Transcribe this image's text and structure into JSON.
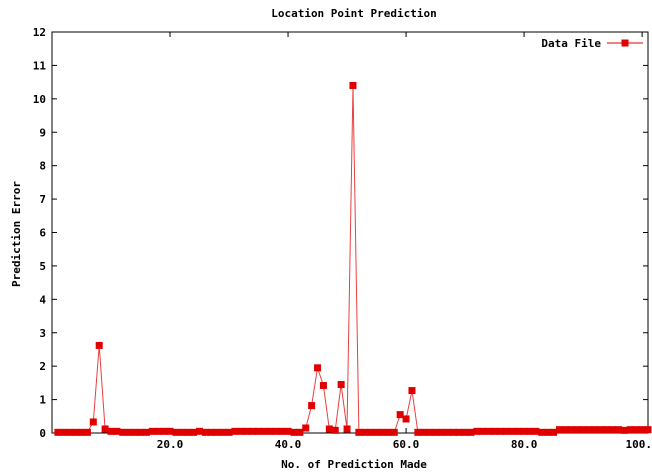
{
  "chart_data": {
    "type": "line",
    "title": "Location Point Prediction",
    "xlabel": "No. of Prediction Made",
    "ylabel": "Prediction Error",
    "xlim": [
      0,
      101
    ],
    "ylim": [
      0,
      12
    ],
    "xticks": [
      20,
      40,
      60,
      80,
      100
    ],
    "xtick_labels": [
      "20.0",
      "40.0",
      "60.0",
      "80.0",
      "100.0"
    ],
    "yticks": [
      0,
      1,
      2,
      3,
      4,
      5,
      6,
      7,
      8,
      9,
      10,
      11,
      12
    ],
    "ytick_labels": [
      "0",
      "1",
      "2",
      "3",
      "4",
      "5",
      "6",
      "7",
      "8",
      "9",
      "10",
      "11",
      "12"
    ],
    "grid": false,
    "legend_position": "top-right",
    "color": "#e00000",
    "series": [
      {
        "name": "Data File",
        "x": [
          1,
          2,
          3,
          4,
          5,
          6,
          7,
          8,
          9,
          10,
          11,
          12,
          13,
          14,
          15,
          16,
          17,
          18,
          19,
          20,
          21,
          22,
          23,
          24,
          25,
          26,
          27,
          28,
          29,
          30,
          31,
          32,
          33,
          34,
          35,
          36,
          37,
          38,
          39,
          40,
          41,
          42,
          43,
          44,
          45,
          46,
          47,
          48,
          49,
          50,
          51,
          52,
          53,
          54,
          55,
          56,
          57,
          58,
          59,
          60,
          61,
          62,
          63,
          64,
          65,
          66,
          67,
          68,
          69,
          70,
          71,
          72,
          73,
          74,
          75,
          76,
          77,
          78,
          79,
          80,
          81,
          82,
          83,
          84,
          85,
          86,
          87,
          88,
          89,
          90,
          91,
          92,
          93,
          94,
          95,
          96,
          97,
          98,
          99,
          100,
          101
        ],
        "values": [
          0.02,
          0.02,
          0.02,
          0.02,
          0.02,
          0.02,
          0.33,
          2.62,
          0.12,
          0.05,
          0.05,
          0.02,
          0.02,
          0.02,
          0.02,
          0.02,
          0.05,
          0.05,
          0.05,
          0.05,
          0.02,
          0.02,
          0.02,
          0.02,
          0.05,
          0.02,
          0.02,
          0.02,
          0.02,
          0.02,
          0.05,
          0.05,
          0.05,
          0.05,
          0.05,
          0.05,
          0.05,
          0.05,
          0.05,
          0.05,
          0.02,
          0.02,
          0.15,
          0.82,
          1.95,
          1.42,
          0.12,
          0.08,
          1.45,
          0.12,
          10.4,
          0.02,
          0.02,
          0.02,
          0.02,
          0.02,
          0.02,
          0.02,
          0.55,
          0.42,
          1.27,
          0.02,
          0.02,
          0.02,
          0.02,
          0.02,
          0.02,
          0.02,
          0.02,
          0.02,
          0.02,
          0.05,
          0.05,
          0.05,
          0.05,
          0.05,
          0.05,
          0.05,
          0.05,
          0.05,
          0.05,
          0.05,
          0.02,
          0.02,
          0.02,
          0.1,
          0.1,
          0.1,
          0.1,
          0.1,
          0.1,
          0.1,
          0.1,
          0.1,
          0.1,
          0.1,
          0.08,
          0.1,
          0.1,
          0.1,
          0.1
        ]
      }
    ]
  }
}
